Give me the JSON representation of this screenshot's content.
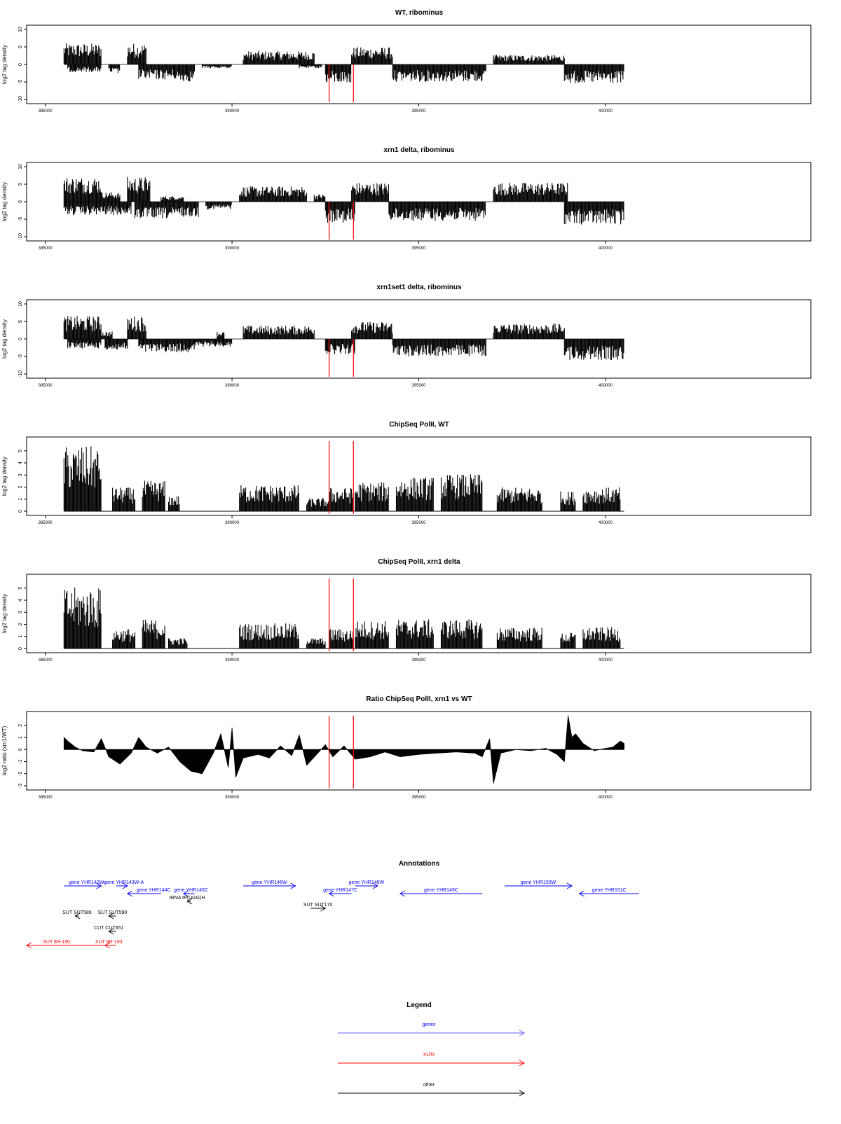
{
  "chart_data": [
    {
      "type": "area",
      "title": "WT, ribominus",
      "ylabel": "log2 tag density",
      "xlim": [
        384500,
        405500
      ],
      "ylim": [
        -10,
        10
      ],
      "yticks": [
        -10,
        -5,
        0,
        5,
        10
      ],
      "xticks": [
        385000,
        390000,
        395000,
        400000
      ],
      "markers": [
        392600,
        393250
      ],
      "series": [
        {
          "strand": "+",
          "regions": [
            [
              385500,
              386500,
              5.5
            ],
            [
              387200,
              387700,
              5.5
            ],
            [
              390300,
              392200,
              3.5
            ],
            [
              393200,
              394300,
              4.5
            ],
            [
              397000,
              398900,
              2.5
            ]
          ]
        },
        {
          "strand": "-",
          "regions": [
            [
              385600,
              386500,
              -2
            ],
            [
              386700,
              387000,
              -2.5
            ],
            [
              387500,
              388500,
              -4
            ],
            [
              388500,
              389000,
              -4.5
            ],
            [
              389200,
              390000,
              -1
            ],
            [
              391800,
              392400,
              -1
            ],
            [
              392500,
              393200,
              -5
            ],
            [
              394300,
              396800,
              -4.5
            ],
            [
              398900,
              400500,
              -5
            ]
          ]
        }
      ]
    },
    {
      "type": "area",
      "title": "xrn1 delta, ribominus",
      "ylabel": "log2 tag density",
      "xlim": [
        384500,
        405500
      ],
      "ylim": [
        -10,
        10
      ],
      "yticks": [
        -10,
        -5,
        0,
        5,
        10
      ],
      "xticks": [
        385000,
        390000,
        395000,
        400000
      ],
      "markers": [
        392600,
        393250
      ],
      "series": [
        {
          "strand": "+",
          "regions": [
            [
              385500,
              386500,
              6.5
            ],
            [
              386500,
              387000,
              2.5
            ],
            [
              387200,
              387800,
              6.5
            ],
            [
              388100,
              388700,
              1.5
            ],
            [
              390200,
              392000,
              4
            ],
            [
              392200,
              392500,
              2
            ],
            [
              393200,
              394200,
              5
            ],
            [
              397000,
              399000,
              5
            ]
          ]
        },
        {
          "strand": "-",
          "regions": [
            [
              385500,
              387300,
              -3.5
            ],
            [
              387400,
              388500,
              -4.5
            ],
            [
              388500,
              389100,
              -4
            ],
            [
              389300,
              390000,
              -2
            ],
            [
              392500,
              393300,
              -5.5
            ],
            [
              394200,
              396800,
              -5
            ],
            [
              398900,
              400500,
              -6
            ]
          ]
        }
      ]
    },
    {
      "type": "area",
      "title": "xrn1set1 delta, ribominus",
      "ylabel": "log2 tag density",
      "xlim": [
        384500,
        405500
      ],
      "ylim": [
        -10,
        10
      ],
      "yticks": [
        -10,
        -5,
        0,
        5,
        10
      ],
      "xticks": [
        385000,
        390000,
        395000,
        400000
      ],
      "markers": [
        392600,
        393250
      ],
      "series": [
        {
          "strand": "+",
          "regions": [
            [
              385500,
              386500,
              6
            ],
            [
              386500,
              386800,
              2
            ],
            [
              387200,
              387700,
              6
            ],
            [
              389600,
              389800,
              2
            ],
            [
              390300,
              392200,
              3.5
            ],
            [
              393200,
              394300,
              4.5
            ],
            [
              397000,
              398900,
              4
            ]
          ]
        },
        {
          "strand": "-",
          "regions": [
            [
              385600,
              386500,
              -2.5
            ],
            [
              386600,
              387200,
              -3
            ],
            [
              387500,
              389000,
              -3.5
            ],
            [
              389000,
              390000,
              -2
            ],
            [
              392500,
              393300,
              -4
            ],
            [
              394300,
              396800,
              -4.5
            ],
            [
              398900,
              400500,
              -5.5
            ]
          ]
        }
      ]
    },
    {
      "type": "area",
      "title": "ChipSeq PolII, WT",
      "ylabel": "log2 tag density",
      "xlim": [
        384500,
        405500
      ],
      "ylim": [
        0,
        5.8
      ],
      "yticks": [
        0,
        1,
        2,
        3,
        4,
        5
      ],
      "xticks": [
        385000,
        390000,
        395000,
        400000
      ],
      "markers": [
        392600,
        393250
      ],
      "series": [
        {
          "regions": [
            [
              385500,
              386500,
              4.9
            ],
            [
              386800,
              387400,
              1.8
            ],
            [
              387600,
              388200,
              2.3
            ],
            [
              388300,
              388600,
              1.2
            ],
            [
              390200,
              391800,
              2
            ],
            [
              392000,
              392600,
              1
            ],
            [
              392600,
              393250,
              1.8
            ],
            [
              393300,
              394200,
              2.2
            ],
            [
              394400,
              395400,
              2.6
            ],
            [
              395600,
              396700,
              2.8
            ],
            [
              397100,
              398300,
              1.8
            ],
            [
              398800,
              399200,
              1.5
            ],
            [
              399400,
              400400,
              1.8
            ]
          ]
        }
      ]
    },
    {
      "type": "area",
      "title": "ChipSeq PolII, xrn1 delta",
      "ylabel": "log2 tag density",
      "xlim": [
        384500,
        405500
      ],
      "ylim": [
        0,
        5.8
      ],
      "yticks": [
        0,
        1,
        2,
        3,
        4,
        5
      ],
      "xticks": [
        385000,
        390000,
        395000,
        400000
      ],
      "markers": [
        392600,
        393250
      ],
      "series": [
        {
          "regions": [
            [
              385500,
              386500,
              4.6
            ],
            [
              386800,
              387400,
              1.5
            ],
            [
              387600,
              388200,
              2.2
            ],
            [
              388300,
              388800,
              0.8
            ],
            [
              390200,
              391800,
              1.9
            ],
            [
              392000,
              392500,
              0.8
            ],
            [
              392600,
              393250,
              1.5
            ],
            [
              393300,
              394200,
              2.1
            ],
            [
              394400,
              395400,
              2.2
            ],
            [
              395600,
              396700,
              2.2
            ],
            [
              397100,
              398300,
              1.6
            ],
            [
              398800,
              399200,
              1.2
            ],
            [
              399400,
              400400,
              1.6
            ]
          ]
        }
      ]
    },
    {
      "type": "area",
      "title": "Ratio ChipSeq PolII, xrn1 vs WT",
      "ylabel": "log2 ratio (xrn1/WT)",
      "xlim": [
        384500,
        405500
      ],
      "ylim": [
        -3,
        2.8
      ],
      "yticks": [
        -3,
        -2,
        -1,
        0,
        1,
        2
      ],
      "xticks": [
        385000,
        390000,
        395000,
        400000
      ],
      "markers": [
        392600,
        393250
      ],
      "points": [
        [
          385500,
          1.0
        ],
        [
          385600,
          0.7
        ],
        [
          385800,
          0.2
        ],
        [
          386000,
          -0.1
        ],
        [
          386300,
          -0.2
        ],
        [
          386500,
          0.9
        ],
        [
          386700,
          -0.6
        ],
        [
          387000,
          -1.2
        ],
        [
          387300,
          -0.3
        ],
        [
          387500,
          1.0
        ],
        [
          387700,
          0.2
        ],
        [
          388000,
          -0.3
        ],
        [
          388300,
          0.2
        ],
        [
          388600,
          -1.0
        ],
        [
          388900,
          -1.8
        ],
        [
          389200,
          -2.0
        ],
        [
          389500,
          -0.3
        ],
        [
          389700,
          1.3
        ],
        [
          389900,
          -1.5
        ],
        [
          390000,
          1.8
        ],
        [
          390100,
          -2.3
        ],
        [
          390300,
          -0.7
        ],
        [
          390700,
          -0.4
        ],
        [
          391000,
          -0.7
        ],
        [
          391300,
          0.3
        ],
        [
          391600,
          -0.5
        ],
        [
          391800,
          1.2
        ],
        [
          392000,
          -1.3
        ],
        [
          392300,
          -0.3
        ],
        [
          392500,
          0.4
        ],
        [
          392700,
          -0.6
        ],
        [
          393000,
          0.3
        ],
        [
          393300,
          -0.8
        ],
        [
          393700,
          -0.6
        ],
        [
          394100,
          -0.2
        ],
        [
          394500,
          -0.6
        ],
        [
          395000,
          -0.4
        ],
        [
          395500,
          -0.3
        ],
        [
          396000,
          -0.2
        ],
        [
          396500,
          -0.3
        ],
        [
          396700,
          -0.6
        ],
        [
          396900,
          0.9
        ],
        [
          397000,
          -2.8
        ],
        [
          397200,
          -0.3
        ],
        [
          397600,
          0.0
        ],
        [
          398000,
          -0.1
        ],
        [
          398400,
          0.1
        ],
        [
          398700,
          -0.4
        ],
        [
          398900,
          -1.0
        ],
        [
          399000,
          2.8
        ],
        [
          399100,
          1.0
        ],
        [
          399200,
          1.3
        ],
        [
          399400,
          0.5
        ],
        [
          399700,
          -0.1
        ],
        [
          400000,
          0.1
        ],
        [
          400200,
          0.2
        ],
        [
          400400,
          0.7
        ],
        [
          400500,
          0.5
        ]
      ]
    }
  ],
  "annotations": {
    "title": "Annotations",
    "items": [
      {
        "label": "gene YHR143W",
        "color": "#0000ff",
        "from": 385500,
        "to": 386500,
        "row": 0,
        "label_x": 386100
      },
      {
        "label": "gene YHR143W-A",
        "color": "#0000ff",
        "from": 386900,
        "to": 387200,
        "row": 0,
        "label_x": 387100
      },
      {
        "label": "gene YHR144C",
        "color": "#0000ff",
        "from": 388100,
        "to": 387200,
        "row": 1,
        "label_x": 387900
      },
      {
        "label": "gene YHR145C",
        "color": "#0000ff",
        "from": 389000,
        "to": 388700,
        "row": 1,
        "label_x": 388900
      },
      {
        "label": "gene YHR146W",
        "color": "#0000ff",
        "from": 390300,
        "to": 391700,
        "row": 0,
        "label_x": 391000
      },
      {
        "label": "gene YHR147C",
        "color": "#0000ff",
        "from": 393200,
        "to": 392600,
        "row": 1,
        "label_x": 392900
      },
      {
        "label": "gene YHR148W",
        "color": "#0000ff",
        "from": 393300,
        "to": 393900,
        "row": 0,
        "label_x": 393600
      },
      {
        "label": "gene YHR149C",
        "color": "#0000ff",
        "from": 396700,
        "to": 394500,
        "row": 1,
        "label_x": 395600
      },
      {
        "label": "gene YHR150W",
        "color": "#0000ff",
        "from": 397300,
        "to": 399100,
        "row": 0,
        "label_x": 398200
      },
      {
        "label": "gene YHR151C",
        "color": "#0000ff",
        "from": 400900,
        "to": 399300,
        "row": 1,
        "label_x": 400100
      },
      {
        "label": "tRNA tP(UGG)H",
        "color": "#000000",
        "from": 388900,
        "to": 388800,
        "row": 2,
        "label_x": 388800
      },
      {
        "label": "SUT SUT170",
        "color": "#000000",
        "from": 392100,
        "to": 392500,
        "row": 3,
        "label_x": 392300
      },
      {
        "label": "SUT SUT589",
        "color": "#000000",
        "from": 385900,
        "to": 385800,
        "row": 4,
        "label_x": 385850
      },
      {
        "label": "SUT SUT590",
        "color": "#000000",
        "from": 386900,
        "to": 386700,
        "row": 4,
        "label_x": 386800
      },
      {
        "label": "CUT CUT651",
        "color": "#000000",
        "from": 386900,
        "to": 386700,
        "row": 5,
        "label_x": 386700
      },
      {
        "label": "XUT 8R-190",
        "color": "#ff0000",
        "from": 386600,
        "to": 384500,
        "row": 6,
        "label_x": 385300
      },
      {
        "label": "XUT 8R-193",
        "color": "#ff0000",
        "from": 386900,
        "to": 386600,
        "row": 6,
        "label_x": 386700
      }
    ]
  },
  "legend": {
    "title": "Legend",
    "items": [
      {
        "label": "genes",
        "color": "#6666ff"
      },
      {
        "label": "XUTs",
        "color": "#ff0000"
      },
      {
        "label": "other",
        "color": "#000000"
      }
    ]
  },
  "colors": {
    "marker": "#ff0000",
    "fill": "#000000",
    "axis": "#000000"
  }
}
